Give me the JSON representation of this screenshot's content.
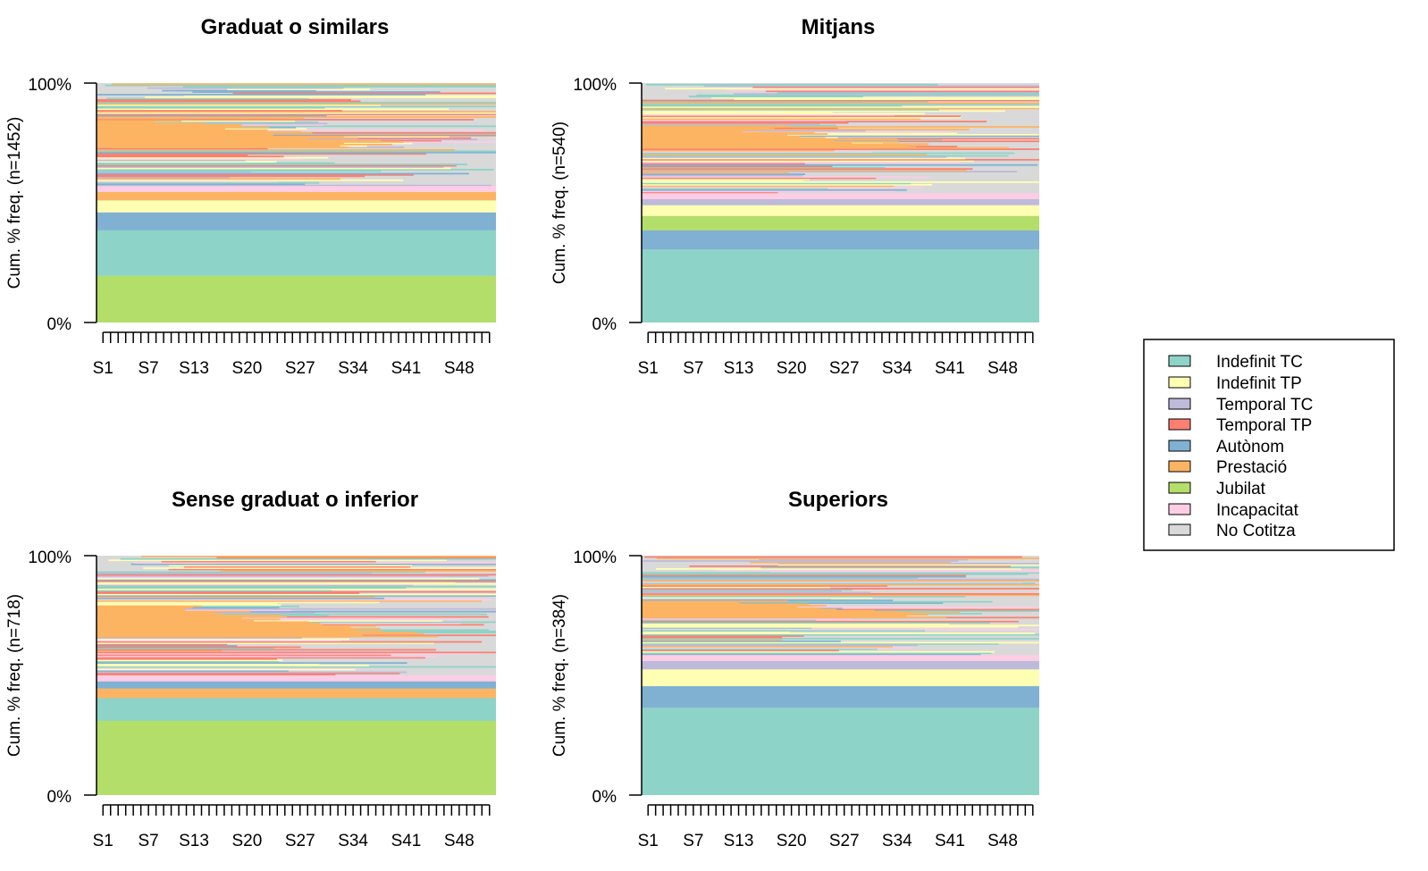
{
  "legend": {
    "entries": [
      {
        "label": "Indefinit TC",
        "color": "#8DD3C7"
      },
      {
        "label": "Indefinit TP",
        "color": "#FFFFB3"
      },
      {
        "label": "Temporal TC",
        "color": "#BEBADA"
      },
      {
        "label": "Temporal TP",
        "color": "#FB8072"
      },
      {
        "label": "Autònom",
        "color": "#80B1D3"
      },
      {
        "label": "Prestació",
        "color": "#FDB462"
      },
      {
        "label": "Jubilat",
        "color": "#B3DE69"
      },
      {
        "label": "Incapacitat",
        "color": "#FCCDE5"
      },
      {
        "label": "No Cotitza",
        "color": "#D9D9D9"
      }
    ]
  },
  "chart_data": [
    {
      "type": "sequence-index",
      "title": "Graduat o similars",
      "ylabel": "Cum. % freq. (n=1452)",
      "n": 1452,
      "y_ticks": [
        "0%",
        "100%"
      ],
      "x_ticks": [
        "S1",
        "S7",
        "S13",
        "S20",
        "S27",
        "S34",
        "S41",
        "S48"
      ],
      "weeks": 52,
      "stable_bands_pct": [
        {
          "state": "Jubilat",
          "from": 0,
          "to": 19.5
        },
        {
          "state": "Indefinit TC",
          "from": 19.5,
          "to": 38.5
        },
        {
          "state": "Autònom",
          "from": 38.5,
          "to": 46
        },
        {
          "state": "Indefinit TP",
          "from": 46,
          "to": 51
        },
        {
          "state": "Prestació",
          "from": 51,
          "to": 54.5
        },
        {
          "state": "Incapacitat",
          "from": 54.5,
          "to": 57
        }
      ],
      "prestacio_block_pct": [
        73,
        84
      ],
      "mixed_top_pct": 57
    },
    {
      "type": "sequence-index",
      "title": "Mitjans",
      "ylabel": "Cum. % freq. (n=540)",
      "n": 540,
      "y_ticks": [
        "0%",
        "100%"
      ],
      "x_ticks": [
        "S1",
        "S7",
        "S13",
        "S20",
        "S27",
        "S34",
        "S41",
        "S48"
      ],
      "weeks": 52,
      "stable_bands_pct": [
        {
          "state": "Indefinit TC",
          "from": 0,
          "to": 30.5
        },
        {
          "state": "Autònom",
          "from": 30.5,
          "to": 38.5
        },
        {
          "state": "Jubilat",
          "from": 38.5,
          "to": 44.5
        },
        {
          "state": "Indefinit TP",
          "from": 44.5,
          "to": 49
        },
        {
          "state": "Temporal TC",
          "from": 49,
          "to": 51.5
        },
        {
          "state": "Incapacitat",
          "from": 51.5,
          "to": 54
        }
      ],
      "prestacio_block_pct": [
        73,
        82
      ],
      "mixed_top_pct": 54
    },
    {
      "type": "sequence-index",
      "title": "Sense graduat o inferior",
      "ylabel": "Cum. % freq. (n=718)",
      "n": 718,
      "y_ticks": [
        "0%",
        "100%"
      ],
      "x_ticks": [
        "S1",
        "S7",
        "S13",
        "S20",
        "S27",
        "S34",
        "S41",
        "S48"
      ],
      "weeks": 52,
      "stable_bands_pct": [
        {
          "state": "Jubilat",
          "from": 0,
          "to": 31
        },
        {
          "state": "Indefinit TC",
          "from": 31,
          "to": 40.5
        },
        {
          "state": "Prestació",
          "from": 40.5,
          "to": 44.5
        },
        {
          "state": "Autònom",
          "from": 44.5,
          "to": 47.5
        },
        {
          "state": "Incapacitat",
          "from": 47.5,
          "to": 50
        }
      ],
      "prestacio_block_pct": [
        66,
        79
      ],
      "mixed_top_pct": 50
    },
    {
      "type": "sequence-index",
      "title": "Superiors",
      "ylabel": "Cum. % freq. (n=384)",
      "n": 384,
      "y_ticks": [
        "0%",
        "100%"
      ],
      "x_ticks": [
        "S1",
        "S7",
        "S13",
        "S20",
        "S27",
        "S34",
        "S41",
        "S48"
      ],
      "weeks": 52,
      "stable_bands_pct": [
        {
          "state": "Indefinit TC",
          "from": 0,
          "to": 36.5
        },
        {
          "state": "Autònom",
          "from": 36.5,
          "to": 45.5
        },
        {
          "state": "Indefinit TP",
          "from": 45.5,
          "to": 52.5
        },
        {
          "state": "Temporal TC",
          "from": 52.5,
          "to": 56
        },
        {
          "state": "Incapacitat",
          "from": 56,
          "to": 58.5
        }
      ],
      "prestacio_block_pct": [
        74,
        81
      ],
      "mixed_top_pct": 58.5
    }
  ]
}
